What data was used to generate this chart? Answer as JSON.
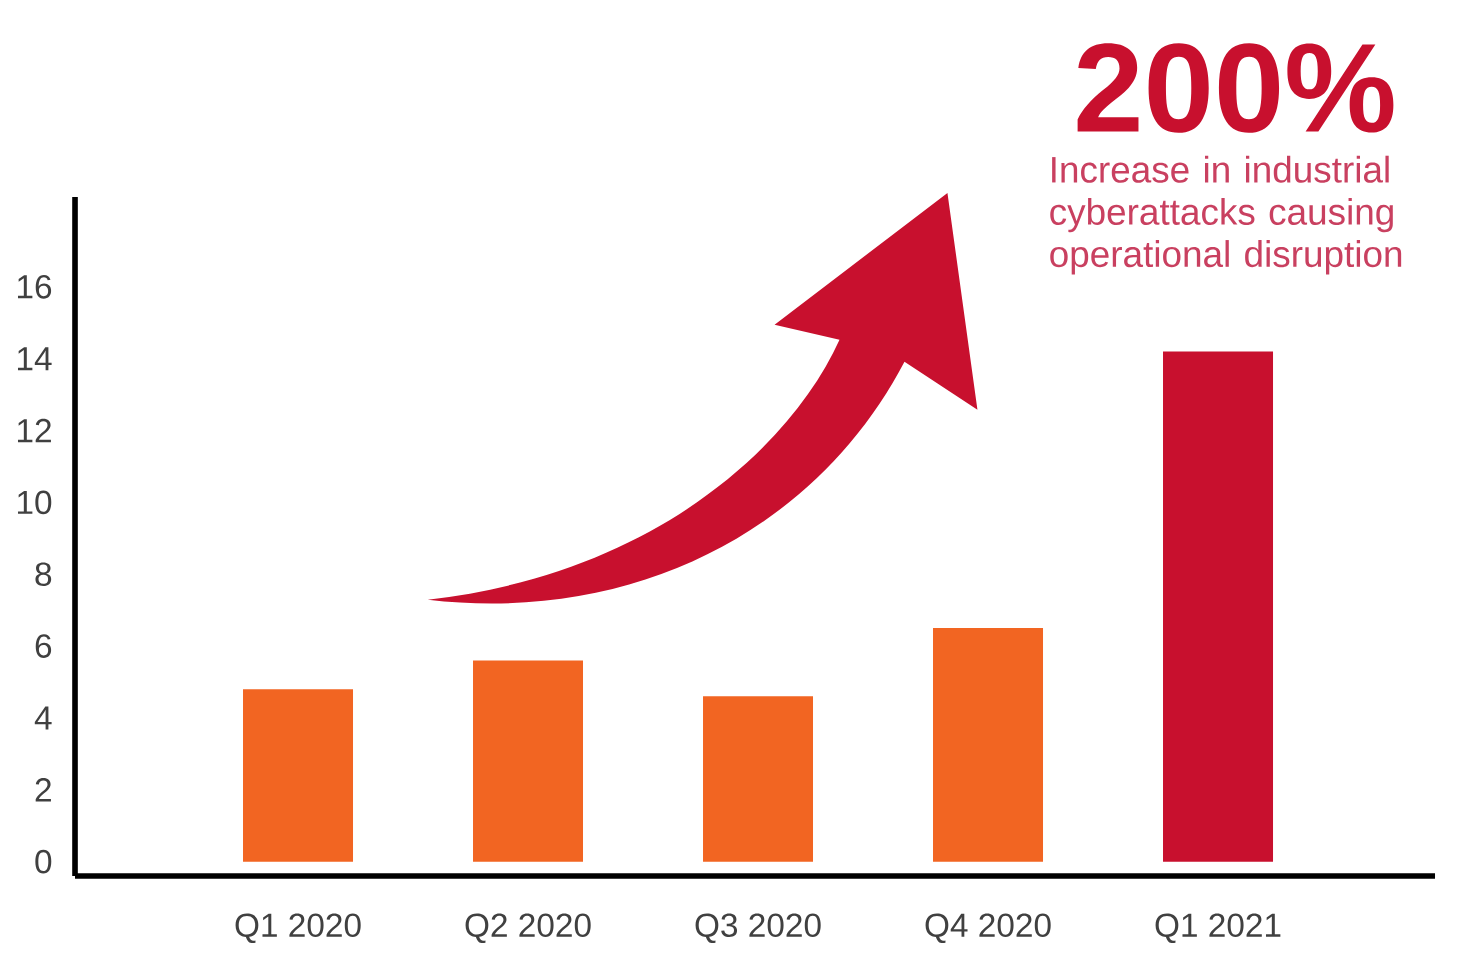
{
  "chart_data": {
    "type": "bar",
    "categories": [
      "Q1 2020",
      "Q2 2020",
      "Q3 2020",
      "Q4 2020",
      "Q1 2021"
    ],
    "values": [
      4.8,
      5.6,
      4.6,
      6.5,
      14.2
    ],
    "colors": [
      "#f26522",
      "#f26522",
      "#f26522",
      "#f26522",
      "#c8102e"
    ],
    "ylim": [
      -0.4,
      18.5
    ],
    "yticks": [
      0,
      2,
      4,
      6,
      8,
      10,
      12,
      14,
      16
    ],
    "grid": false,
    "annotations": [
      "200%",
      "Increase in industrial cyberattacks causing operational disruption"
    ]
  }
}
